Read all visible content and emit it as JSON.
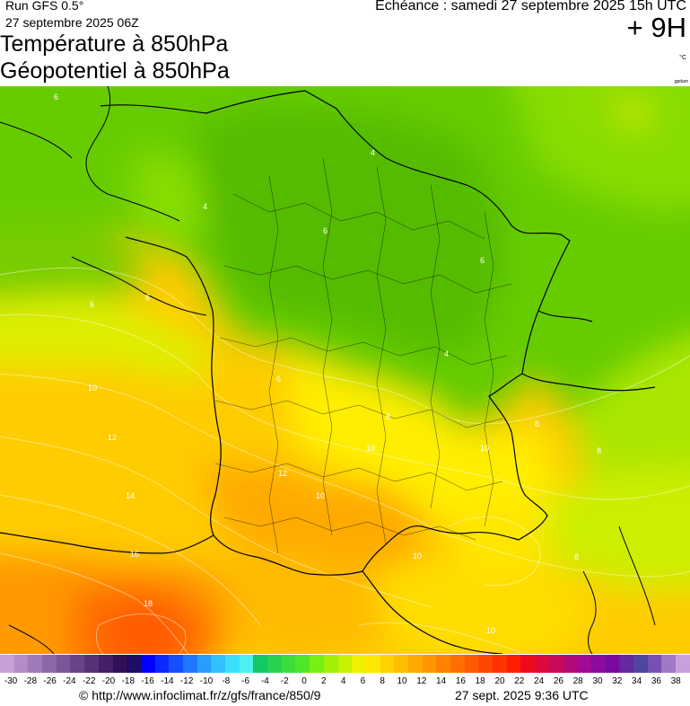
{
  "header": {
    "run": "Run GFS 0.5°",
    "run_date": "27 septembre 2025 06Z",
    "title_line1": "Température à 850hPa",
    "title_line2": "Géopotentiel à 850hPa",
    "echeance": "Echéance : samedi 27 septembre 2025 15h UTC",
    "offset": "+ 9H",
    "unit": "°C",
    "gpdam": "gpdam"
  },
  "map": {
    "region": "France",
    "contour_labels": [
      "6",
      "4",
      "4",
      "6",
      "6",
      "10",
      "12",
      "14",
      "16",
      "18",
      "4",
      "8",
      "10",
      "8",
      "10",
      "8",
      "10",
      "10",
      "6",
      "8",
      "10",
      "12",
      "6",
      "6"
    ]
  },
  "colorbar": {
    "colors": [
      "#c8a0d8",
      "#b48cc8",
      "#a07ab8",
      "#8c68a8",
      "#7a5698",
      "#684488",
      "#563278",
      "#442068",
      "#321058",
      "#1e0c66",
      "#0000ff",
      "#0a28ff",
      "#1450ff",
      "#1e78ff",
      "#289cff",
      "#32c0ff",
      "#3ce0ff",
      "#50f0f0",
      "#14c864",
      "#28d250",
      "#3cdc3c",
      "#50e628",
      "#78f014",
      "#a0f00a",
      "#c8f000",
      "#f0f000",
      "#ffe600",
      "#ffd200",
      "#ffbe00",
      "#ffaa00",
      "#ff9600",
      "#ff8200",
      "#ff6e00",
      "#ff5a00",
      "#ff4600",
      "#ff3200",
      "#ff1e00",
      "#f00a1e",
      "#dc0a3c",
      "#c80a5a",
      "#b40a78",
      "#a00a96",
      "#8c0aa0",
      "#780aa0",
      "#6428a0",
      "#5046a0",
      "#7850b4",
      "#a078c8",
      "#c8a0dc"
    ],
    "tick_labels": [
      "-30",
      "-28",
      "-26",
      "-24",
      "-22",
      "-20",
      "-18",
      "-16",
      "-14",
      "-12",
      "-10",
      "-8",
      "-6",
      "-4",
      "-2",
      "0",
      "2",
      "4",
      "6",
      "8",
      "10",
      "12",
      "14",
      "16",
      "18",
      "20",
      "22",
      "24",
      "26",
      "28",
      "30",
      "32",
      "34",
      "36",
      "38"
    ]
  },
  "footer": {
    "url": "© http://www.infoclimat.fr/z/gfs/france/850/9",
    "timestamp": "27 sept. 2025  9:36 UTC"
  }
}
